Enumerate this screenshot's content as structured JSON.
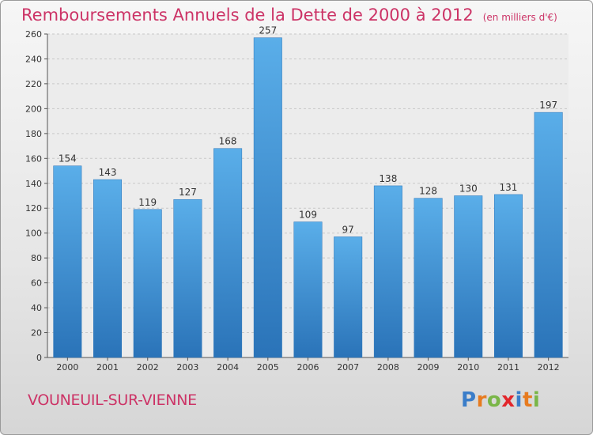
{
  "chart_data": {
    "type": "bar",
    "title": "Remboursements Annuels de la Dette de 2000 à 2012",
    "subtitle": "(en milliers d'€)",
    "categories": [
      "2000",
      "2001",
      "2002",
      "2003",
      "2004",
      "2005",
      "2006",
      "2007",
      "2008",
      "2009",
      "2010",
      "2011",
      "2012"
    ],
    "values": [
      154,
      143,
      119,
      127,
      168,
      257,
      109,
      97,
      138,
      128,
      130,
      131,
      197
    ],
    "ylim": [
      0,
      260
    ],
    "yticks": [
      0,
      20,
      40,
      60,
      80,
      100,
      120,
      140,
      160,
      180,
      200,
      220,
      240,
      260
    ],
    "grid": true,
    "bar_color": "#4a9fdf",
    "xlabel": "",
    "ylabel": ""
  },
  "footer": {
    "city": "VOUNEUIL-SUR-VIENNE",
    "logo_letters": [
      "P",
      "r",
      "o",
      "x",
      "i",
      "t",
      "i"
    ]
  },
  "colors": {
    "title": "#cc3366",
    "bar_top": "#5aaee9",
    "bar_bottom": "#2a73b8",
    "grid": "#c8c8c8"
  }
}
